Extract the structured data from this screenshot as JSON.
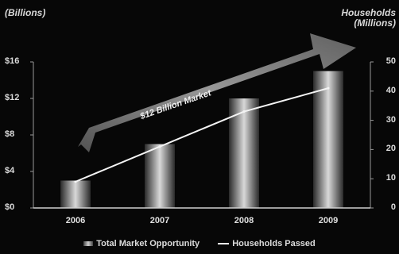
{
  "chart_data": {
    "type": "bar",
    "categories": [
      "2006",
      "2007",
      "2008",
      "2009"
    ],
    "series": [
      {
        "name": "Total Market Opportunity",
        "type": "bar",
        "axis": "left",
        "values": [
          3,
          7,
          12,
          15
        ]
      },
      {
        "name": "Households Passed",
        "type": "line",
        "axis": "right",
        "values": [
          9,
          21,
          33,
          41
        ]
      }
    ],
    "ylabel": "(Billions)",
    "ylabel_right": "Households (Millions)",
    "ylim": [
      0,
      16
    ],
    "ylim_right": [
      0,
      50
    ],
    "yticks": [
      "$0",
      "$4",
      "$8",
      "$12",
      "$16"
    ],
    "yticks_values": [
      0,
      4,
      8,
      12,
      16
    ],
    "yticks_right": [
      "0",
      "10",
      "20",
      "30",
      "40",
      "50"
    ],
    "yticks_right_values": [
      0,
      10,
      20,
      30,
      40,
      50
    ],
    "annotation": "$12 Billion Market",
    "legend": [
      "Total Market Opportunity",
      "Households Passed"
    ],
    "grid": false,
    "legend_position": "bottom"
  },
  "colors": {
    "background": "#070707",
    "line": "#f4f4f4",
    "arrow": "#8a8a8a"
  }
}
